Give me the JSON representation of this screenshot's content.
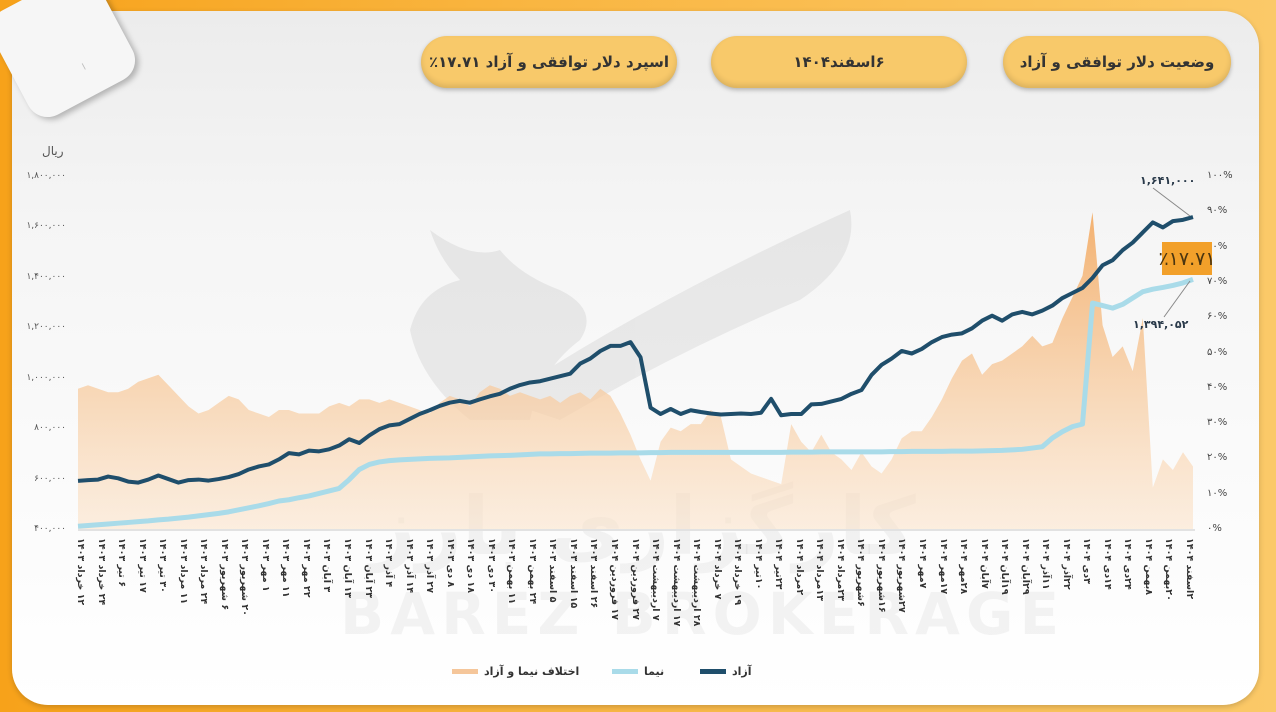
{
  "header": {
    "title": "وضعیت دلار توافقی و آزاد",
    "date": "۶اسفند۱۴۰۴",
    "spread": "اسپرد دلار توافقی و آزاد ۱۷.۷۱٪"
  },
  "watermark": {
    "latin": "BAREZ BROKERAGE",
    "persian": "کارگزاری بارز"
  },
  "colors": {
    "azad": "#1f4e6b",
    "nima": "#a9dbe9",
    "diff": "#f5b97c",
    "badge": "#f2a02a",
    "frame": "#f9b540",
    "pill": "#f8c96a"
  },
  "chart_data": {
    "type": "line",
    "title": "وضعیت دلار توافقی و آزاد",
    "ylabel": "ریال",
    "ylabel_right": "%",
    "ylim": [
      400000,
      1800000
    ],
    "ylim_right": [
      0,
      100
    ],
    "y_ticks_left": [
      "۱,۸۰۰,۰۰۰",
      "۱,۶۰۰,۰۰۰",
      "۱,۴۰۰,۰۰۰",
      "۱,۲۰۰,۰۰۰",
      "۱,۰۰۰,۰۰۰",
      "۸۰۰,۰۰۰",
      "۶۰۰,۰۰۰",
      "۴۰۰,۰۰۰"
    ],
    "y_ticks_right": [
      "۱۰۰%",
      "۹۰%",
      "۸۰%",
      "۷۰%",
      "۶۰%",
      "۵۰%",
      "۴۰%",
      "۳۰%",
      "۲۰%",
      "۱۰%",
      "۰%"
    ],
    "categories": [
      "۱۲ خرداد ۱۴۰۳",
      "۲۴ خرداد ۱۴۰۳",
      "۶ تیر ۱۴۰۳",
      "۱۷ تیر ۱۴۰۳",
      "۳۰ تیر ۱۴۰۳",
      "۱۱ مرداد ۱۴۰۳",
      "۲۴ مرداد ۱۴۰۳",
      "۶ شهریور ۱۴۰۳",
      "۲۰ شهریور ۱۴۰۳",
      "۱ مهر ۱۴۰۳",
      "۱۱ مهر ۱۴۰۳",
      "۲۲ مهر ۱۴۰۳",
      "۳ آبان ۱۴۰۳",
      "۱۳ آبان ۱۴۰۳",
      "۲۳ آبان ۱۴۰۳",
      "۴ آذر ۱۴۰۳",
      "۱۴ آذر ۱۴۰۳",
      "۲۷ آذر ۱۴۰۳",
      "۸ دی ۱۴۰۳",
      "۱۸ دی ۱۴۰۳",
      "۳۰ دی ۱۴۰۳",
      "۱۱ بهمن ۱۴۰۳",
      "۲۴ بهمن ۱۴۰۳",
      "۵ اسفند ۱۴۰۳",
      "۱۵ اسفند ۱۴۰۳",
      "۲۶ اسفند ۱۴۰۳",
      "۱۷ فروردین ۱۴۰۴",
      "۲۷ فروردین ۱۴۰۴",
      "۷ اردیبهشت ۱۴۰۴",
      "۱۷ اردیبهشت ۱۴۰۴",
      "۲۸ اردیبهشت ۱۴۰۴",
      "۷ خرداد ۱۴۰۴",
      "۱۹ خرداد ۱۴۰۴",
      "۱۰تیر ۱۴۰۴",
      "۲۳تیر ۱۴۰۴",
      "۲مرداد ۱۴۰۴",
      "۱۳مرداد ۱۴۰۴",
      "۲۳مرداد ۱۴۰۴",
      "۶شهریور ۱۴۰۴",
      "۱۶شهریور ۱۴۰۴",
      "۲۷شهریور ۱۴۰۴",
      "۷مهر ۱۴۰۴",
      "۱۷مهر ۱۴۰۴",
      "۲۸مهر ۱۴۰۴",
      "۷آبان ۱۴۰۴",
      "۱۹آبان ۱۴۰۴",
      "۲۹آبان ۱۴۰۴",
      "۱۱آذر ۱۴۰۴",
      "۲۲آذر ۱۴۰۴",
      "۳دی ۱۴۰۴",
      "۱۴دی ۱۴۰۴",
      "۲۴دی ۱۴۰۴",
      "۸بهمن ۱۴۰۴",
      "۲۰بهمن ۱۴۰۴",
      "۲اسفند ۱۴۰۴"
    ],
    "series": [
      {
        "name": "آزاد",
        "axis": "left",
        "values": [
          595000,
          598000,
          600000,
          612000,
          605000,
          592000,
          588000,
          600000,
          616000,
          602000,
          588000,
          598000,
          600000,
          596000,
          602000,
          610000,
          622000,
          640000,
          652000,
          660000,
          680000,
          705000,
          700000,
          715000,
          712000,
          720000,
          735000,
          760000,
          745000,
          775000,
          800000,
          815000,
          820000,
          840000,
          860000,
          875000,
          892000,
          905000,
          912000,
          905000,
          918000,
          930000,
          940000,
          960000,
          975000,
          985000,
          990000,
          1000000,
          1010000,
          1020000,
          1060000,
          1080000,
          1110000,
          1130000,
          1130000,
          1145000,
          1085000,
          885000,
          860000,
          880000,
          860000,
          875000,
          868000,
          862000,
          858000,
          860000,
          862000,
          860000,
          865000,
          920000,
          855000,
          860000,
          860000,
          898000,
          900000,
          910000,
          920000,
          940000,
          955000,
          1015000,
          1055000,
          1080000,
          1110000,
          1100000,
          1118000,
          1145000,
          1165000,
          1175000,
          1180000,
          1200000,
          1230000,
          1250000,
          1230000,
          1255000,
          1265000,
          1255000,
          1270000,
          1290000,
          1320000,
          1340000,
          1360000,
          1400000,
          1450000,
          1470000,
          1510000,
          1540000,
          1580000,
          1620000,
          1600000,
          1625000,
          1630000,
          1641000
        ]
      },
      {
        "name": "نیما",
        "axis": "left",
        "values": [
          415000,
          418000,
          421000,
          424000,
          427000,
          430000,
          433000,
          436000,
          440000,
          443000,
          447000,
          451000,
          456000,
          461000,
          466000,
          472000,
          480000,
          488000,
          496000,
          505000,
          515000,
          520000,
          528000,
          535000,
          545000,
          555000,
          565000,
          600000,
          640000,
          660000,
          670000,
          675000,
          678000,
          680000,
          682000,
          684000,
          685000,
          686000,
          688000,
          690000,
          692000,
          694000,
          695000,
          696000,
          698000,
          700000,
          702000,
          702000,
          703000,
          703000,
          704000,
          705000,
          705000,
          705000,
          706000,
          706000,
          706000,
          707000,
          707000,
          708000,
          708000,
          708000,
          708000,
          708000,
          708000,
          708000,
          708000,
          708000,
          708000,
          708000,
          708000,
          709000,
          709000,
          709000,
          710000,
          710000,
          710000,
          710000,
          710000,
          710000,
          710000,
          711000,
          711000,
          712000,
          712000,
          712000,
          712000,
          713000,
          713000,
          713000,
          714000,
          715000,
          716000,
          718000,
          720000,
          725000,
          730000,
          765000,
          790000,
          810000,
          820000,
          1300000,
          1290000,
          1280000,
          1295000,
          1320000,
          1345000,
          1355000,
          1362000,
          1370000,
          1380000,
          1394052
        ]
      },
      {
        "name": "اختلاف نیما و آزاد",
        "axis": "right",
        "unit": "%",
        "values": [
          40,
          41,
          40,
          39,
          39,
          40,
          42,
          43,
          44,
          41,
          38,
          35,
          33,
          34,
          36,
          38,
          37,
          34,
          33,
          32,
          34,
          34,
          33,
          33,
          33,
          35,
          36,
          35,
          37,
          37,
          36,
          37,
          36,
          35,
          34,
          33,
          36,
          38,
          37,
          35,
          39,
          41,
          40,
          38,
          39,
          38,
          37,
          38,
          36,
          38,
          39,
          37,
          40,
          38,
          33,
          27,
          20,
          14,
          25,
          29,
          28,
          30,
          30,
          34,
          32,
          20,
          18,
          16,
          15,
          14,
          13,
          30,
          25,
          22,
          27,
          22,
          20,
          17,
          22,
          18,
          16,
          20,
          26,
          28,
          28,
          32,
          37,
          43,
          48,
          50,
          44,
          47,
          48,
          50,
          52,
          55,
          52,
          53,
          60,
          66,
          72,
          90,
          58,
          49,
          52,
          45,
          60,
          12,
          20,
          17,
          22,
          18
        ]
      }
    ],
    "annotations": [
      {
        "label": "۱,۶۴۱,۰۰۰",
        "series": "آزاد",
        "value": 1641000
      },
      {
        "label": "۱,۳۹۴,۰۵۲",
        "series": "نیما",
        "value": 1394052
      },
      {
        "label": "٪۱۷.۷۱",
        "type": "spread-badge",
        "value": 17.71
      }
    ],
    "legend": [
      {
        "label": "آزاد",
        "color": "#1f4e6b"
      },
      {
        "label": "نیما",
        "color": "#a9dbe9"
      },
      {
        "label": "اختلاف نیما و آزاد",
        "color": "#f5b97c"
      }
    ],
    "legend_position": "bottom",
    "grid": false
  },
  "axis": {
    "left_unit": "ریال"
  }
}
